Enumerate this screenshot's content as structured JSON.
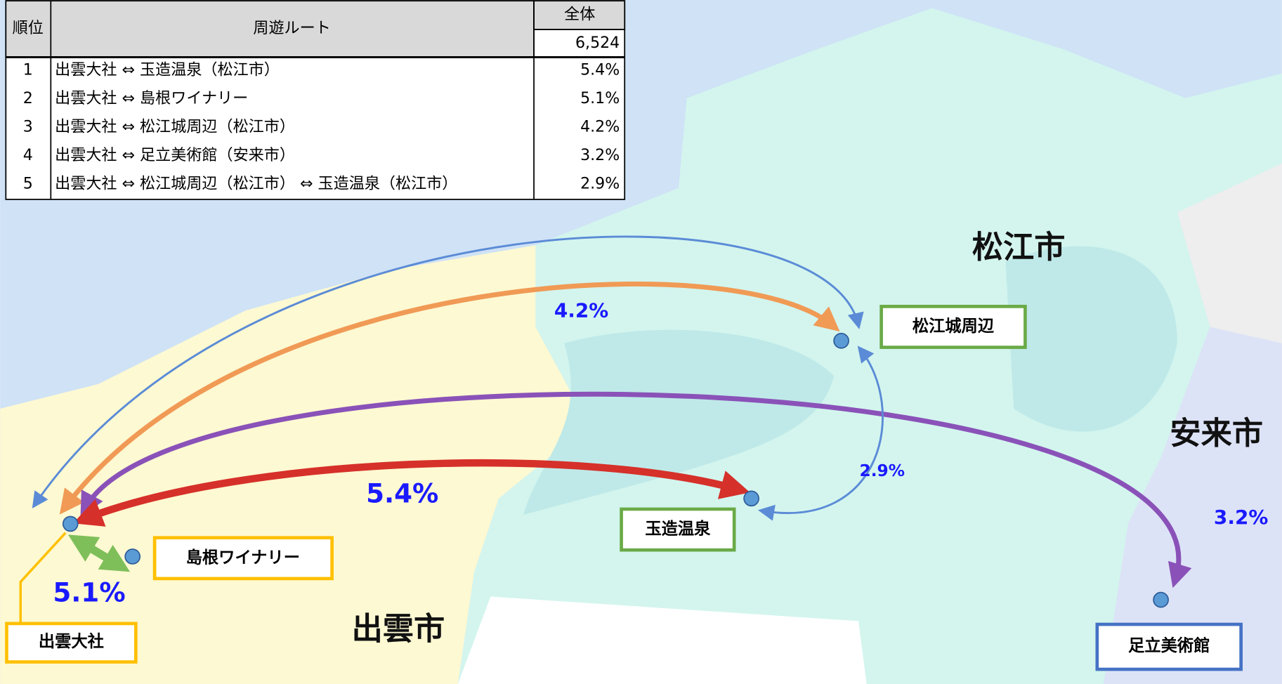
{
  "table": {
    "header": [
      "順位",
      "周遊ルート",
      "全体"
    ],
    "total": "6,524",
    "rows": [
      [
        "1",
        "出雲大社 ⇔ 玉造温泉（松江市）",
        "5.4%"
      ],
      [
        "2",
        "出雲大社 ⇔ 島根ワイナリー",
        "5.1%"
      ],
      [
        "3",
        "出雲大社 ⇔ 松江城周辺（松江市）",
        "4.2%"
      ],
      [
        "4",
        "出雲大社 ⇔ 足立美術館（安来市）",
        "3.2%"
      ],
      [
        "5",
        "出雲大社 ⇔ 松江城周辺（松江市） ⇔ 玉造温泉（松江市）",
        "2.9%"
      ]
    ]
  },
  "map": {
    "cities": [
      "松江市",
      "安来市",
      "出雲市"
    ],
    "spots": [
      "松江城周辺",
      "玉造温泉",
      "島根ワイナリー",
      "出雲大社",
      "足立美術館"
    ]
  }
}
